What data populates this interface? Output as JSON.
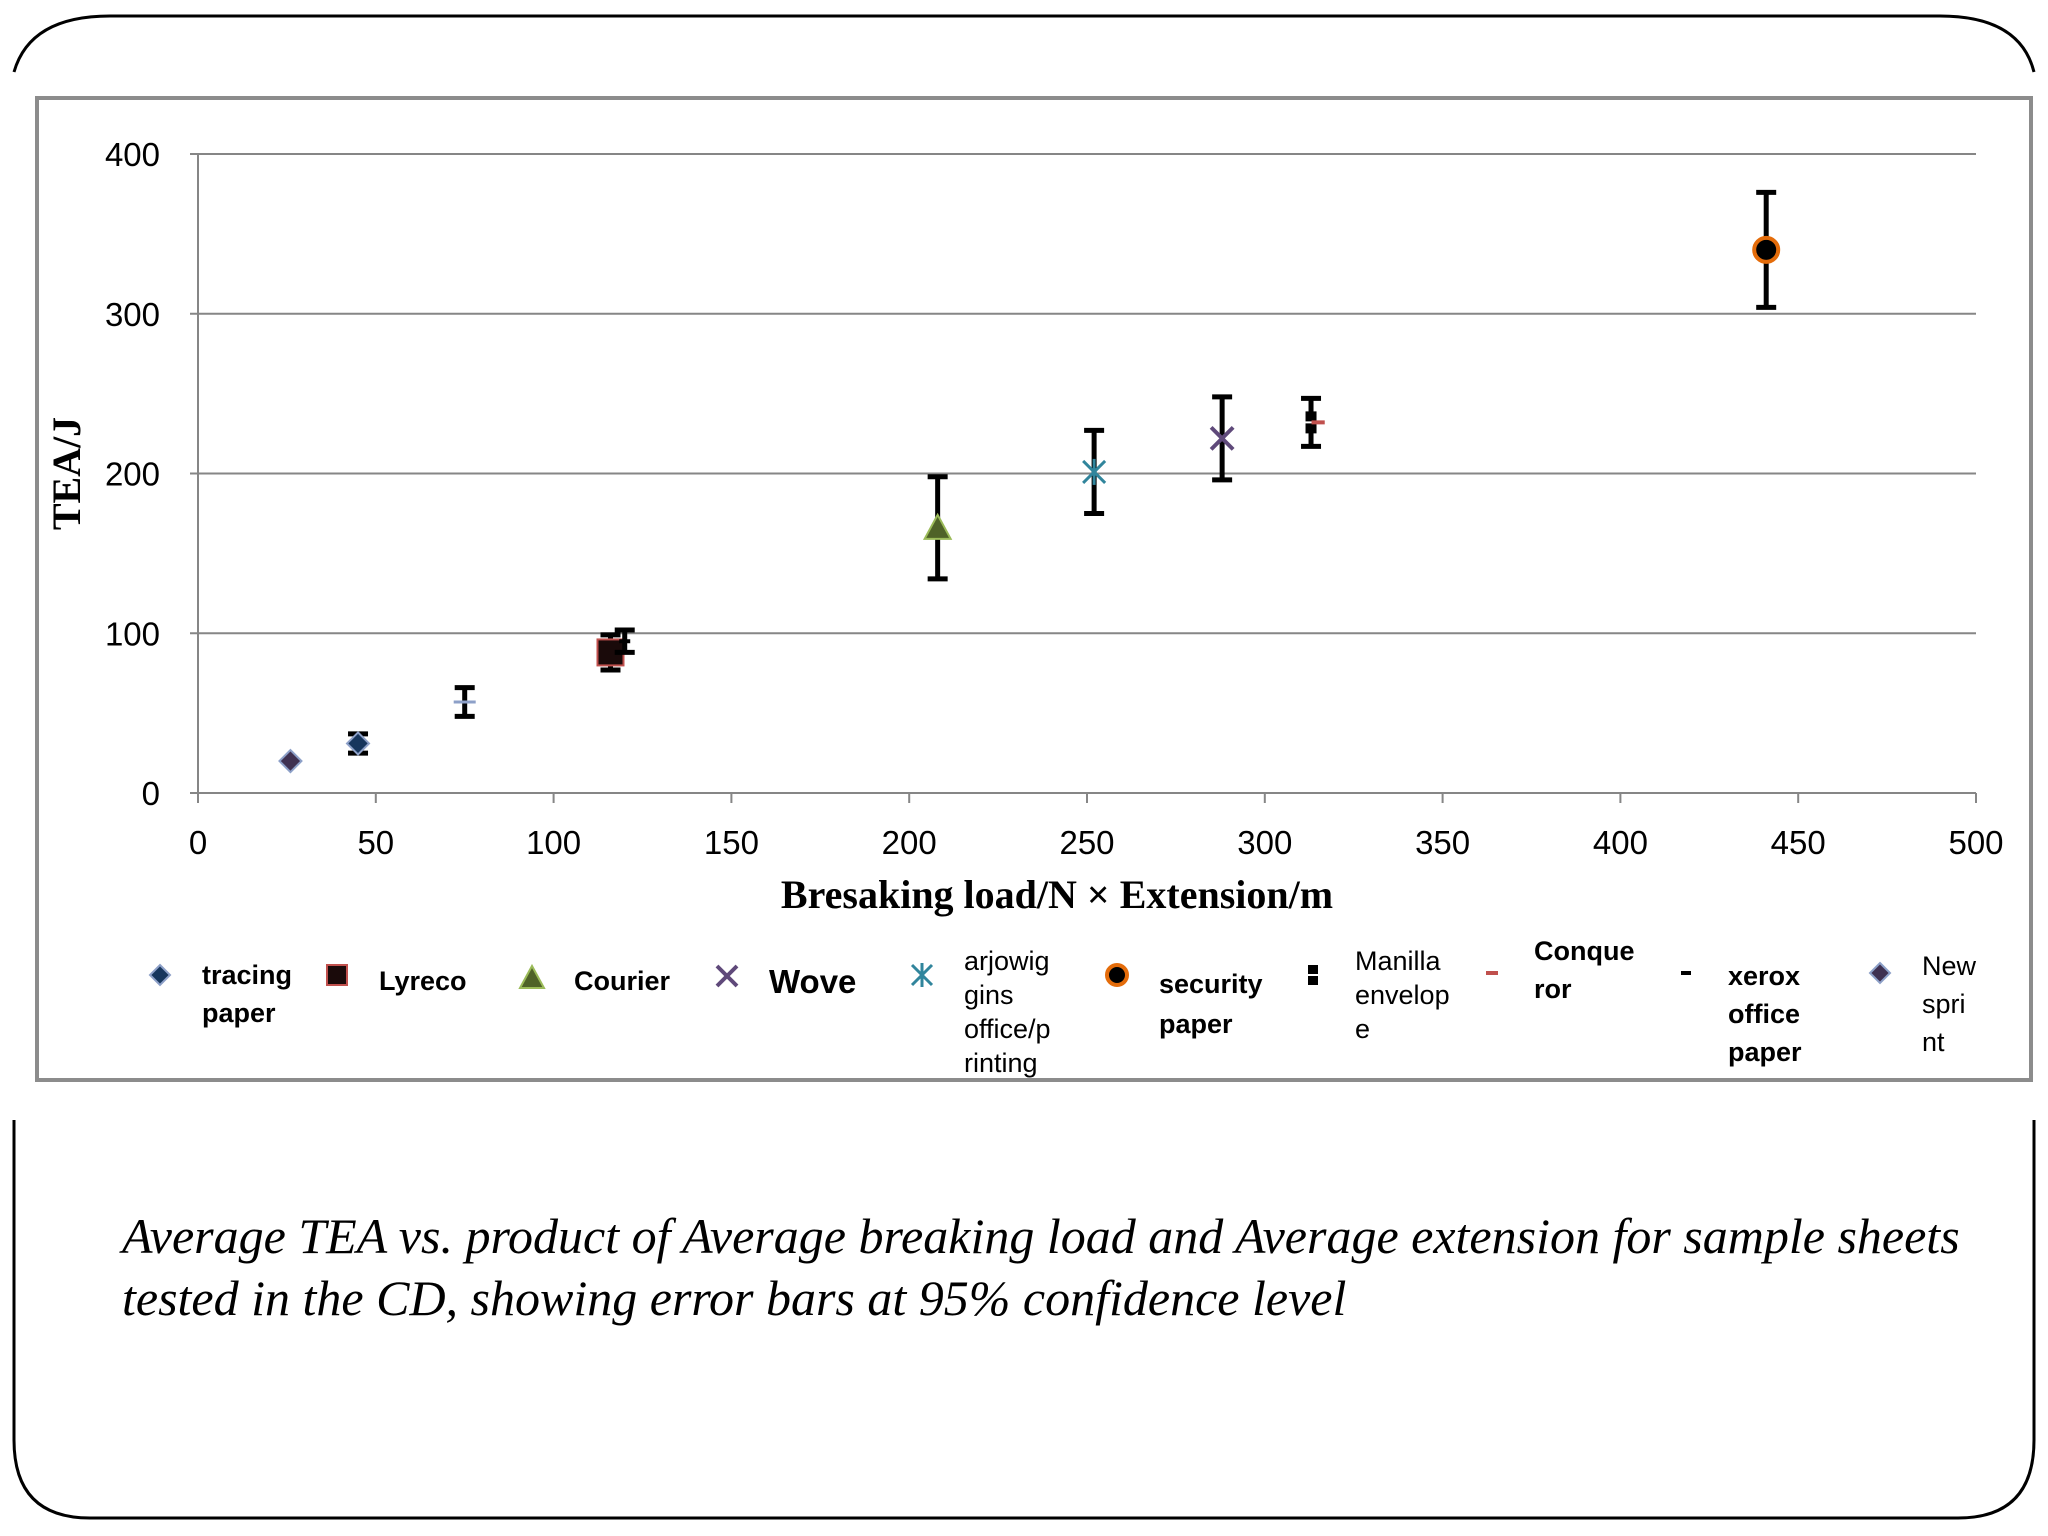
{
  "caption": "Average TEA vs. product of Average breaking load and Average extension for sample sheets tested in the CD, showing error bars at 95% confidence level",
  "colors": {
    "frame": "#000000",
    "chart_border": "#8c8c8c",
    "grid": "#868686",
    "text": "#000000"
  },
  "chart_data": {
    "type": "scatter",
    "title": "",
    "xlabel": "Bresaking load/N ×  Extension/m",
    "ylabel": "TEA/J",
    "xlim": [
      0,
      500
    ],
    "ylim": [
      0,
      400
    ],
    "x_ticks": [
      "0",
      "50",
      "100",
      "150",
      "200",
      "250",
      "300",
      "350",
      "400",
      "450",
      "500"
    ],
    "y_ticks": [
      "0",
      "100",
      "200",
      "300",
      "400"
    ],
    "grid": "horizontal",
    "legend_position": "bottom",
    "error_bars": "95% confidence",
    "series": [
      {
        "name": "tracing paper",
        "legend_lines": [
          "tracing",
          "paper"
        ],
        "marker": "diamond",
        "color": "#17365d",
        "x": 45,
        "y": 31,
        "err": 6
      },
      {
        "name": "Lyreco",
        "legend_lines": [
          "Lyreco"
        ],
        "marker": "square",
        "color": "#1a0a0a",
        "x": 116,
        "y": 88,
        "err": 11
      },
      {
        "name": "Courier",
        "legend_lines": [
          "Courier"
        ],
        "marker": "triangle",
        "color": "#4f6228",
        "x": 208,
        "y": 166,
        "err": 32
      },
      {
        "name": "Wove",
        "legend_lines": [
          "Wove"
        ],
        "marker": "x",
        "color": "#5f497a",
        "x": 288,
        "y": 222,
        "err": 26
      },
      {
        "name": "arjowiggins office/printing",
        "legend_lines": [
          "arjowig",
          "gins",
          "office/p",
          "rinting"
        ],
        "marker": "star",
        "color": "#31859c",
        "x": 252,
        "y": 201,
        "err": 26
      },
      {
        "name": "security paper",
        "legend_lines": [
          "security",
          "paper"
        ],
        "marker": "circle",
        "color": "#e46c0a",
        "x": 441,
        "y": 340,
        "err": 36
      },
      {
        "name": "Manilla envelope",
        "legend_lines": [
          "Manilla",
          "envelop",
          "e"
        ],
        "marker": "bar",
        "color": "#000000",
        "x": 313,
        "y": 232,
        "err": 15
      },
      {
        "name": "Conqueror",
        "legend_lines": [
          "Conque",
          "ror"
        ],
        "marker": "dash-red",
        "color": "#c0504d",
        "x": 315,
        "y": 232,
        "err": 0
      },
      {
        "name": "xerox office paper",
        "legend_lines": [
          "xerox",
          "office",
          "paper"
        ],
        "marker": "dash",
        "color": "#000000",
        "x": 120,
        "y": 95,
        "err": 7
      },
      {
        "name": "New sprint",
        "legend_lines": [
          "New",
          "spri",
          "nt"
        ],
        "marker": "diamond",
        "color": "#3f3151",
        "x": 26,
        "y": 20,
        "err": 0
      },
      {
        "name": "",
        "legend_lines": [],
        "marker": "tick",
        "color": "#1f497d",
        "x": 75,
        "y": 57,
        "err": 9
      }
    ]
  }
}
